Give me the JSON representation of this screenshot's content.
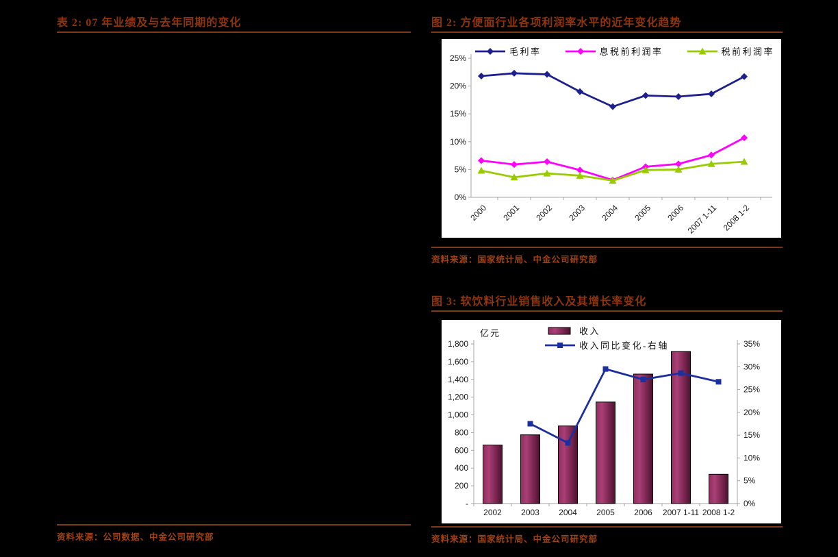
{
  "page": {
    "background": "#000000",
    "title_color": "#8f3509",
    "source_color": "#a2420e",
    "rule_color": "#7e3916"
  },
  "left_panel": {
    "title": "表 2:  07 年业绩及与去年同期的变化",
    "source": "资料来源：公司数据、中金公司研究部"
  },
  "figure2": {
    "title": "图 2:  方便面行业各项利润率水平的近年变化趋势",
    "source": "资料来源：国家统计局、中金公司研究部"
  },
  "figure3": {
    "title": "图 3:  软饮料行业销售收入及其增长率变化",
    "source": "资料来源：国家统计局、中金公司研究部"
  },
  "chart_data": [
    {
      "id": "instant-noodle-margin-trend",
      "type": "line",
      "title": "方便面行业各项利润率水平的近年变化趋势",
      "categories": [
        "2000",
        "2001",
        "2002",
        "2003",
        "2004",
        "2005",
        "2006",
        "2007 1-11",
        "2008 1-2"
      ],
      "series": [
        {
          "name": "毛利率",
          "color": "#1c1f8e",
          "marker": "diamond",
          "values": [
            21.8,
            22.3,
            22.1,
            19.0,
            16.3,
            18.3,
            18.1,
            18.6,
            21.7
          ]
        },
        {
          "name": "息税前利润率",
          "color": "#ff00ff",
          "marker": "diamond",
          "values": [
            6.6,
            5.9,
            6.4,
            4.9,
            3.1,
            5.5,
            6.0,
            7.6,
            10.7
          ]
        },
        {
          "name": "税前利润率",
          "color": "#99cc00",
          "marker": "triangle",
          "values": [
            4.8,
            3.6,
            4.3,
            3.9,
            3.0,
            4.9,
            5.0,
            6.0,
            6.4
          ]
        }
      ],
      "ylabel": "",
      "ylim": [
        0,
        25
      ],
      "y_tick_step": 5,
      "y_ticks": [
        "0%",
        "5%",
        "10%",
        "15%",
        "20%",
        "25%"
      ],
      "grid": false,
      "legend_position": "top-inside",
      "axis_color": "#a6a6a6"
    },
    {
      "id": "soft-drink-revenue-growth",
      "type": "bar+line",
      "title": "软饮料行业销售收入及其增长率变化",
      "categories": [
        "2002",
        "2003",
        "2004",
        "2005",
        "2006",
        "2007 1-11",
        "2008 1-2"
      ],
      "bar_series": {
        "name": "收入",
        "color": "#993366",
        "unit": "亿元",
        "values": [
          660,
          775,
          875,
          1145,
          1460,
          1715,
          330
        ]
      },
      "line_series": {
        "name": "收入同比变化-右轴",
        "color": "#1c2f9e",
        "marker": "square",
        "unit": "%",
        "values": [
          null,
          17.5,
          13.3,
          29.5,
          27.2,
          28.6,
          26.7
        ]
      },
      "left_axis_title": "亿元",
      "ylim_left": [
        0,
        1800
      ],
      "left_ticks": [
        "-",
        "200",
        "400",
        "600",
        "800",
        "1,000",
        "1,200",
        "1,400",
        "1,600",
        "1,800"
      ],
      "ylim_right": [
        0,
        35
      ],
      "right_ticks": [
        "0%",
        "5%",
        "10%",
        "15%",
        "20%",
        "25%",
        "30%",
        "35%"
      ],
      "grid": false,
      "legend_position": "top-inside",
      "axis_color": "#a6a6a6"
    }
  ]
}
